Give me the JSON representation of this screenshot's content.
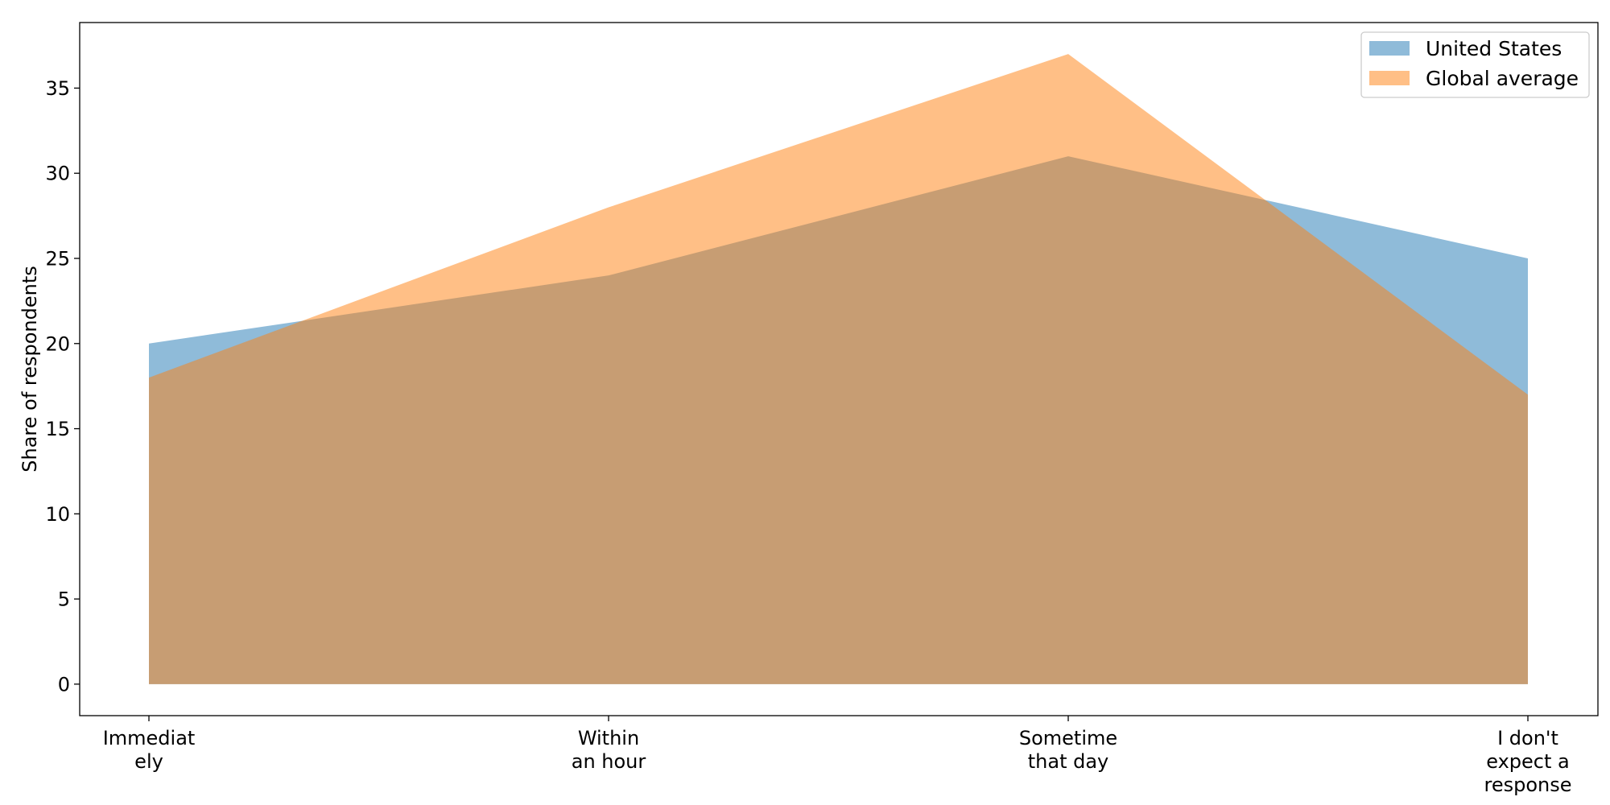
{
  "chart_data": {
    "type": "area",
    "categories": [
      [
        "Immediat",
        "ely"
      ],
      [
        "Within",
        "an hour"
      ],
      [
        "Sometime",
        "that day"
      ],
      [
        "I don't",
        "expect a",
        "response"
      ]
    ],
    "series": [
      {
        "name": "United States",
        "values": [
          20,
          24,
          31,
          25
        ],
        "color": "#1f77b4",
        "opacity": 0.5
      },
      {
        "name": "Global average",
        "values": [
          18,
          28,
          37,
          17
        ],
        "color": "#ff7f0e",
        "opacity": 0.5
      }
    ],
    "title": "",
    "xlabel": "",
    "ylabel": "Share of respondents",
    "ylim": [
      -1.85,
      38.85
    ],
    "yticks": [
      0,
      5,
      10,
      15,
      20,
      25,
      30,
      35
    ],
    "grid": false,
    "legend_position": "top-right"
  }
}
